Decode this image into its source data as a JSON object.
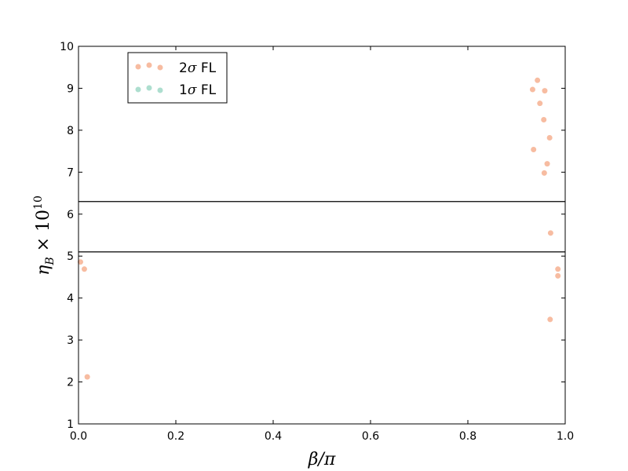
{
  "chart_data": {
    "type": "scatter",
    "xlabel": "β/π",
    "ylabel_main": "η",
    "ylabel_sub": "B",
    "ylabel_times": " × 10",
    "ylabel_exp": "10",
    "xlim": [
      0.0,
      1.0
    ],
    "ylim": [
      1,
      10
    ],
    "xticks": [
      "0.0",
      "0.2",
      "0.4",
      "0.6",
      "0.8",
      "1.0"
    ],
    "xtick_values": [
      0.0,
      0.2,
      0.4,
      0.6,
      0.8,
      1.0
    ],
    "yticks": [
      "1",
      "2",
      "3",
      "4",
      "5",
      "6",
      "7",
      "8",
      "9",
      "10"
    ],
    "ytick_values": [
      1,
      2,
      3,
      4,
      5,
      6,
      7,
      8,
      9,
      10
    ],
    "grid": false,
    "hlines": [
      6.3,
      5.1
    ],
    "legend_position": "top-left",
    "series": [
      {
        "name": "2σ FL",
        "name_main": "2",
        "name_sigma": "σ",
        "name_tail": " FL",
        "color": "#f4a582",
        "x": [
          0.943,
          0.933,
          0.958,
          0.948,
          0.956,
          0.968,
          0.935,
          0.963,
          0.957,
          0.97,
          0.985,
          0.985,
          0.969,
          0.004,
          0.012,
          0.018
        ],
        "y": [
          9.19,
          8.97,
          8.94,
          8.64,
          8.25,
          7.82,
          7.54,
          7.2,
          6.98,
          5.55,
          4.69,
          4.53,
          3.49,
          4.86,
          4.69,
          2.12
        ]
      },
      {
        "name": "1σ FL",
        "name_main": "1",
        "name_sigma": "σ",
        "name_tail": " FL",
        "color": "#92d3bf",
        "x": [],
        "y": []
      }
    ]
  }
}
